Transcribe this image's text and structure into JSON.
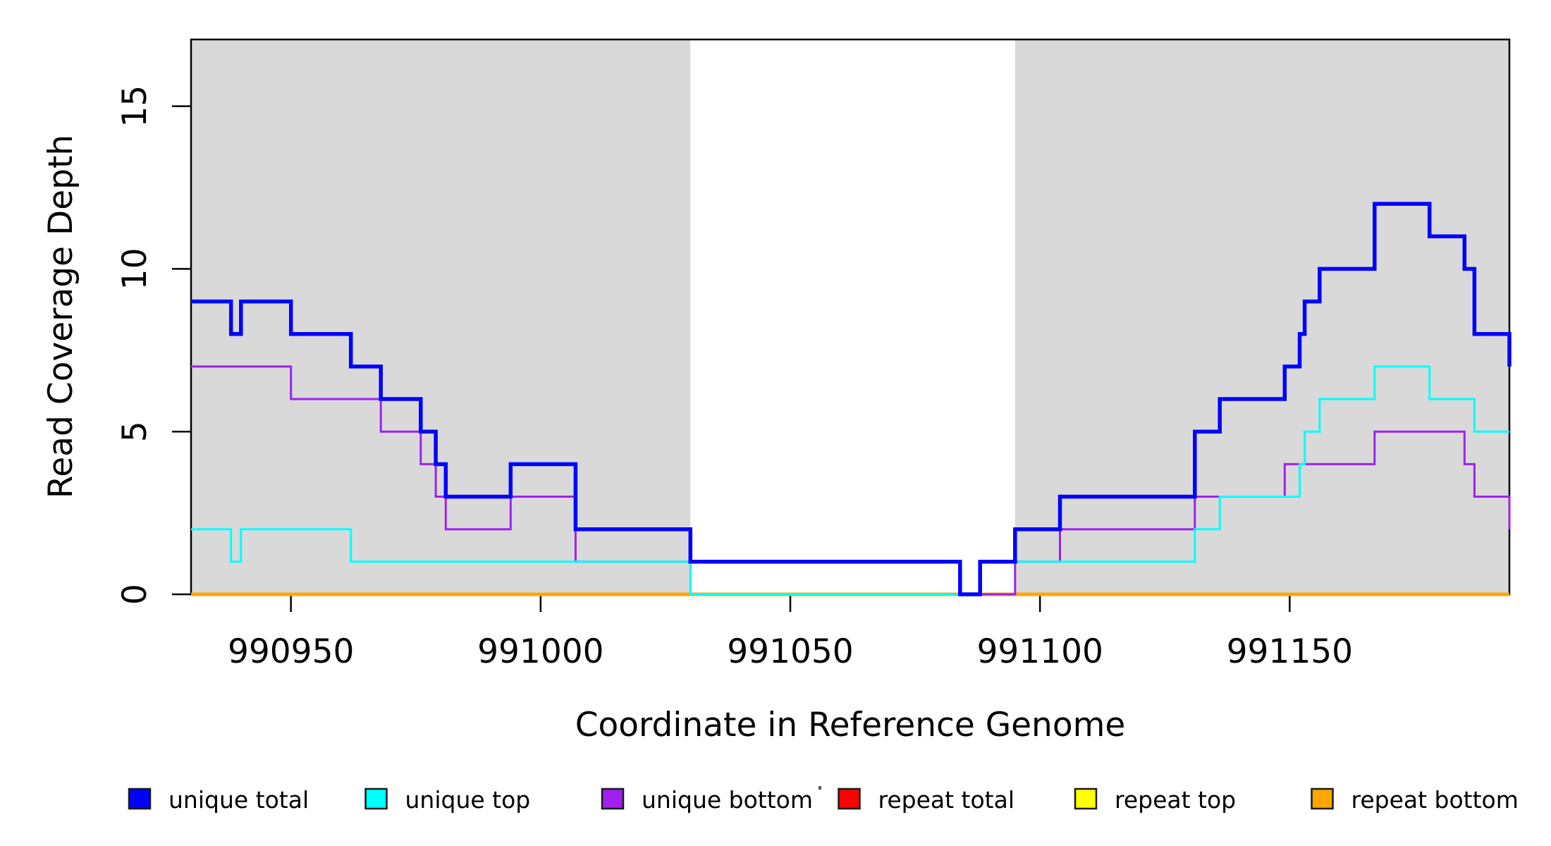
{
  "chart_data": {
    "type": "line",
    "subtype": "step-coverage",
    "title": "",
    "xlabel": "Coordinate in Reference Genome",
    "ylabel": "Read Coverage Depth",
    "xlim": [
      990930,
      991194
    ],
    "ylim": [
      0,
      17.05
    ],
    "x_ticks": [
      990950,
      991000,
      991050,
      991100,
      991150
    ],
    "y_ticks": [
      0,
      5,
      10,
      15
    ],
    "grid": "off",
    "legend_position": "bottom",
    "shade_color": "#D9D9D9",
    "shaded_regions": [
      {
        "from": 990930,
        "to": 991030
      },
      {
        "from": 991095,
        "to": 991194
      }
    ],
    "draw_order": [
      3,
      4,
      5,
      2,
      1,
      0
    ],
    "series": [
      {
        "name": "unique total",
        "color": "#0000FF",
        "width": 5.5,
        "breakpoints": [
          [
            990930,
            9
          ],
          [
            990938,
            8
          ],
          [
            990940,
            9
          ],
          [
            990950,
            8
          ],
          [
            990962,
            7
          ],
          [
            990968,
            6
          ],
          [
            990976,
            5
          ],
          [
            990979,
            4
          ],
          [
            990981,
            3
          ],
          [
            990994,
            4
          ],
          [
            991007,
            2
          ],
          [
            991030,
            1
          ],
          [
            991084,
            0
          ],
          [
            991088,
            1
          ],
          [
            991095,
            2
          ],
          [
            991104,
            3
          ],
          [
            991131,
            5
          ],
          [
            991136,
            6
          ],
          [
            991149,
            7
          ],
          [
            991152,
            8
          ],
          [
            991153,
            9
          ],
          [
            991156,
            10
          ],
          [
            991167,
            12
          ],
          [
            991178,
            11
          ],
          [
            991185,
            10
          ],
          [
            991187,
            8
          ],
          [
            991194,
            7
          ]
        ]
      },
      {
        "name": "unique top",
        "color": "#00FFFF",
        "width": 3,
        "breakpoints": [
          [
            990930,
            2
          ],
          [
            990938,
            1
          ],
          [
            990940,
            2
          ],
          [
            990962,
            1
          ],
          [
            991030,
            0
          ],
          [
            991088,
            1
          ],
          [
            991131,
            2
          ],
          [
            991136,
            3
          ],
          [
            991152,
            4
          ],
          [
            991153,
            5
          ],
          [
            991156,
            6
          ],
          [
            991167,
            7
          ],
          [
            991178,
            6
          ],
          [
            991187,
            5
          ]
        ]
      },
      {
        "name": "unique bottom",
        "color": "#A020F0",
        "width": 3,
        "breakpoints": [
          [
            990930,
            7
          ],
          [
            990950,
            6
          ],
          [
            990968,
            5
          ],
          [
            990976,
            4
          ],
          [
            990979,
            3
          ],
          [
            990981,
            2
          ],
          [
            990994,
            3
          ],
          [
            991007,
            1
          ],
          [
            991084,
            0
          ],
          [
            991095,
            1
          ],
          [
            991104,
            2
          ],
          [
            991131,
            3
          ],
          [
            991149,
            4
          ],
          [
            991167,
            5
          ],
          [
            991185,
            4
          ],
          [
            991187,
            3
          ],
          [
            991194,
            2
          ]
        ]
      },
      {
        "name": "repeat total",
        "color": "#FF0000",
        "width": 3,
        "breakpoints": [
          [
            990930,
            0
          ]
        ]
      },
      {
        "name": "repeat top",
        "color": "#FFFF00",
        "width": 4,
        "breakpoints": [
          [
            990930,
            0
          ]
        ]
      },
      {
        "name": "repeat bottom",
        "color": "#FFA500",
        "width": 5,
        "breakpoints": [
          [
            990930,
            0
          ]
        ]
      }
    ]
  }
}
